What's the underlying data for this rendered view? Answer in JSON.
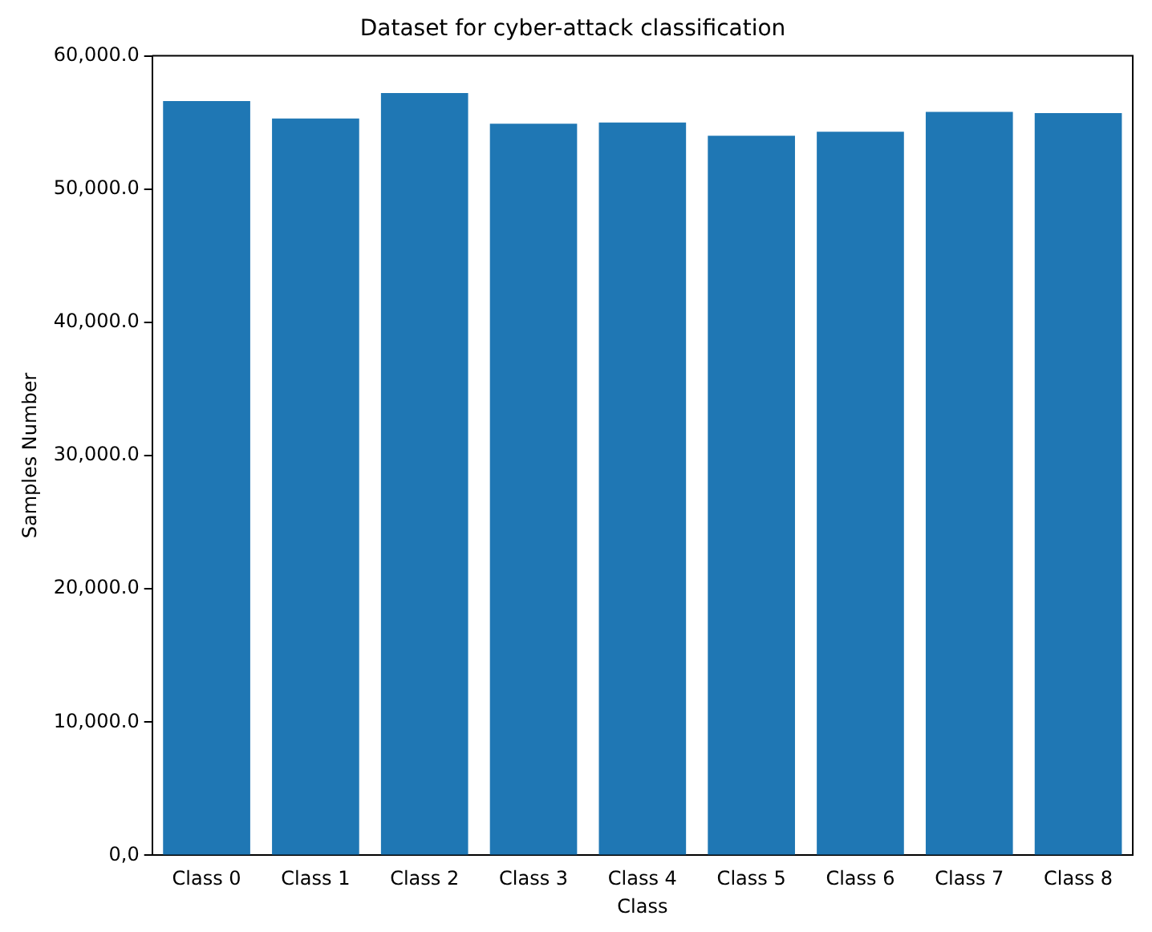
{
  "chart_data": {
    "type": "bar",
    "title": "Dataset for cyber-attack classification",
    "xlabel": "Class",
    "ylabel": "Samples Number",
    "categories": [
      "Class 0",
      "Class 1",
      "Class 2",
      "Class 3",
      "Class 4",
      "Class 5",
      "Class 6",
      "Class 7",
      "Class 8"
    ],
    "values": [
      56600,
      55300,
      57200,
      54900,
      55000,
      54000,
      54300,
      55800,
      55700
    ],
    "color": "#1f77b4",
    "ylim": [
      0,
      60000
    ],
    "yticks": [
      {
        "value": 0,
        "label": "0,0"
      },
      {
        "value": 10000,
        "label": "10,000.0"
      },
      {
        "value": 20000,
        "label": "20,000.0"
      },
      {
        "value": 30000,
        "label": "30,000.0"
      },
      {
        "value": 40000,
        "label": "40,000.0"
      },
      {
        "value": 50000,
        "label": "50,000.0"
      },
      {
        "value": 60000,
        "label": "60,000.0"
      }
    ],
    "grid": false,
    "legend": false
  }
}
